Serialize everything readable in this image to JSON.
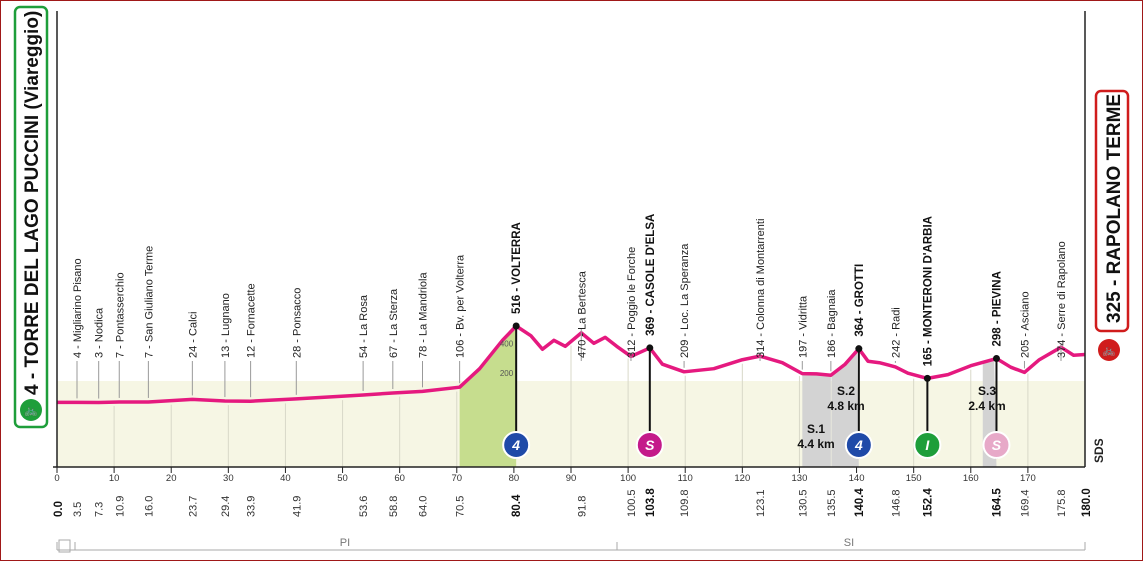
{
  "chart_data": {
    "type": "area",
    "start": {
      "label": "4 - TORRE DEL LAGO PUCCINI (Viareggio)",
      "km": "0.0"
    },
    "finish": {
      "label": "325 - RAPOLANO TERME",
      "km": "180.0"
    },
    "colors": {
      "profile": "#e5197f",
      "start_badge": "#1e9e3a",
      "finish_badge": "#d01c1c",
      "climb_fill": "#c6dd8e",
      "ground": "#f6f6e4",
      "sector": "#d3d3d3"
    },
    "x_ticks": [
      "0",
      "10",
      "20",
      "30",
      "40",
      "50",
      "60",
      "70",
      "80",
      "90",
      "100",
      "110",
      "120",
      "130",
      "140",
      "150",
      "160",
      "170"
    ],
    "xlim": [
      0,
      180
    ],
    "alt_ticks": [
      "200",
      "400"
    ],
    "profile": [
      [
        0,
        4
      ],
      [
        3.5,
        4
      ],
      [
        7.3,
        3
      ],
      [
        10.9,
        7
      ],
      [
        16,
        7
      ],
      [
        23.7,
        24
      ],
      [
        29.4,
        13
      ],
      [
        33.9,
        12
      ],
      [
        41.9,
        28
      ],
      [
        53.6,
        54
      ],
      [
        58.8,
        67
      ],
      [
        64,
        78
      ],
      [
        70.5,
        106
      ],
      [
        74,
        230
      ],
      [
        78,
        420
      ],
      [
        80.4,
        516
      ],
      [
        83,
        450
      ],
      [
        85,
        360
      ],
      [
        87,
        420
      ],
      [
        89,
        380
      ],
      [
        91.8,
        470
      ],
      [
        94,
        400
      ],
      [
        96,
        440
      ],
      [
        98,
        380
      ],
      [
        100.5,
        312
      ],
      [
        103.8,
        369
      ],
      [
        106,
        260
      ],
      [
        109.8,
        209
      ],
      [
        115,
        230
      ],
      [
        120,
        290
      ],
      [
        123.1,
        314
      ],
      [
        127,
        270
      ],
      [
        130.5,
        197
      ],
      [
        133,
        195
      ],
      [
        135.5,
        186
      ],
      [
        138,
        260
      ],
      [
        140.4,
        364
      ],
      [
        142,
        280
      ],
      [
        144,
        270
      ],
      [
        146.8,
        242
      ],
      [
        149,
        200
      ],
      [
        152.4,
        165
      ],
      [
        156,
        190
      ],
      [
        160,
        250
      ],
      [
        164.5,
        298
      ],
      [
        167,
        240
      ],
      [
        169.4,
        205
      ],
      [
        172,
        290
      ],
      [
        175.8,
        374
      ],
      [
        178,
        320
      ],
      [
        180,
        325
      ]
    ],
    "waypoints": [
      {
        "km": "3.5",
        "label": "4 - Migliarino Pisano"
      },
      {
        "km": "7.3",
        "label": "3 - Nodica"
      },
      {
        "km": "10.9",
        "label": "7 - Pontasserchio"
      },
      {
        "km": "16.0",
        "label": "7 - San Giuliano Terme"
      },
      {
        "km": "23.7",
        "label": "24 - Calci"
      },
      {
        "km": "29.4",
        "label": "13 - Lugnano"
      },
      {
        "km": "33.9",
        "label": "12 - Fornacette"
      },
      {
        "km": "41.9",
        "label": "28 - Ponsacco"
      },
      {
        "km": "53.6",
        "label": "54 - La Rosa"
      },
      {
        "km": "58.8",
        "label": "67 - La Sterza"
      },
      {
        "km": "64.0",
        "label": "78 - La Mandriola"
      },
      {
        "km": "70.5",
        "label": "106 - Bv. per Volterra"
      },
      {
        "km": "80.4",
        "label": "516 - VOLTERRA"
      },
      {
        "km": "91.8",
        "label": "470 - La Bertesca"
      },
      {
        "km": "100.5",
        "label": "312 - Poggio le Forche"
      },
      {
        "km": "103.8",
        "label": "369 - CASOLE D'ELSA"
      },
      {
        "km": "109.8",
        "label": "209 - Loc. La Speranza"
      },
      {
        "km": "123.1",
        "label": "314 - Colonna di Montarrenti"
      },
      {
        "km": "130.5",
        "label": "197 - Vidritta"
      },
      {
        "km": "135.5",
        "label": "186 - Bagnaia"
      },
      {
        "km": "140.4",
        "label": "364 - GROTTI"
      },
      {
        "km": "146.8",
        "label": "242 - Radi"
      },
      {
        "km": "152.4",
        "label": "165 - MONTERONI D'ARBIA"
      },
      {
        "km": "164.5",
        "label": "298 - PIEVINA"
      },
      {
        "km": "169.4",
        "label": "205 - Asciano"
      },
      {
        "km": "175.8",
        "label": "374 - Serre di Rapolano"
      }
    ],
    "sectors": [
      {
        "name": "S.1",
        "length": "4.4 km"
      },
      {
        "name": "S.2",
        "length": "4.8 km"
      },
      {
        "name": "S.3",
        "length": "2.4 km"
      }
    ],
    "markers": [
      {
        "symbol": "4"
      },
      {
        "symbol": "S"
      },
      {
        "symbol": "4"
      },
      {
        "symbol": "I"
      },
      {
        "symbol": "S"
      }
    ],
    "regions": [
      "PI",
      "SI"
    ],
    "logo_text": "SDS"
  }
}
